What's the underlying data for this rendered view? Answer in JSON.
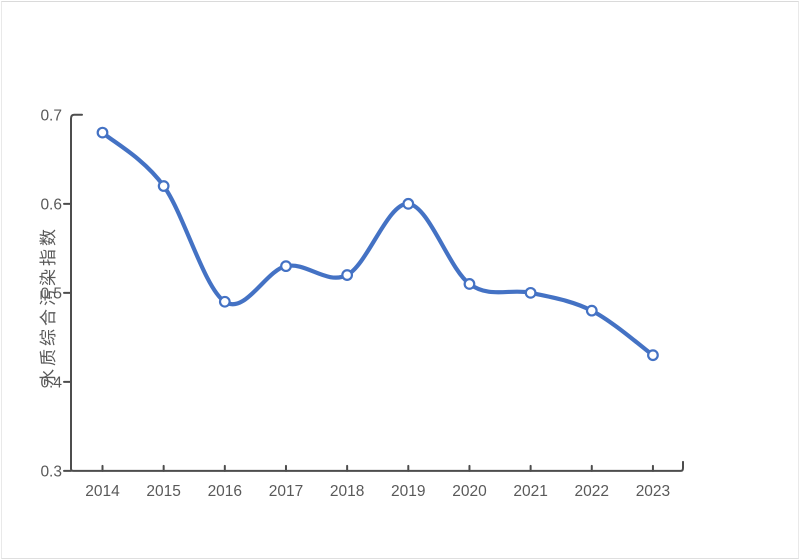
{
  "page": {
    "background": "#ffffff",
    "border_color": "#e9e9e9"
  },
  "chart_data": {
    "type": "line",
    "ylabel": "水质综合污染指数",
    "categories": [
      "2014",
      "2015",
      "2016",
      "2017",
      "2018",
      "2019",
      "2020",
      "2021",
      "2022",
      "2023"
    ],
    "values": [
      0.68,
      0.62,
      0.49,
      0.53,
      0.52,
      0.6,
      0.51,
      0.5,
      0.48,
      0.43
    ],
    "ylim": [
      0.3,
      0.7
    ],
    "y_tick_labels": [
      "0.7",
      "0.6",
      "0.5",
      "0.4",
      "0.3"
    ],
    "grid": false,
    "legend": "none",
    "smooth": true,
    "marker": "open-circle",
    "line_color": "#4472C4",
    "marker_fill": "#FFFFFF",
    "axis_color": "#4D4D4D",
    "text_color": "#595959"
  }
}
